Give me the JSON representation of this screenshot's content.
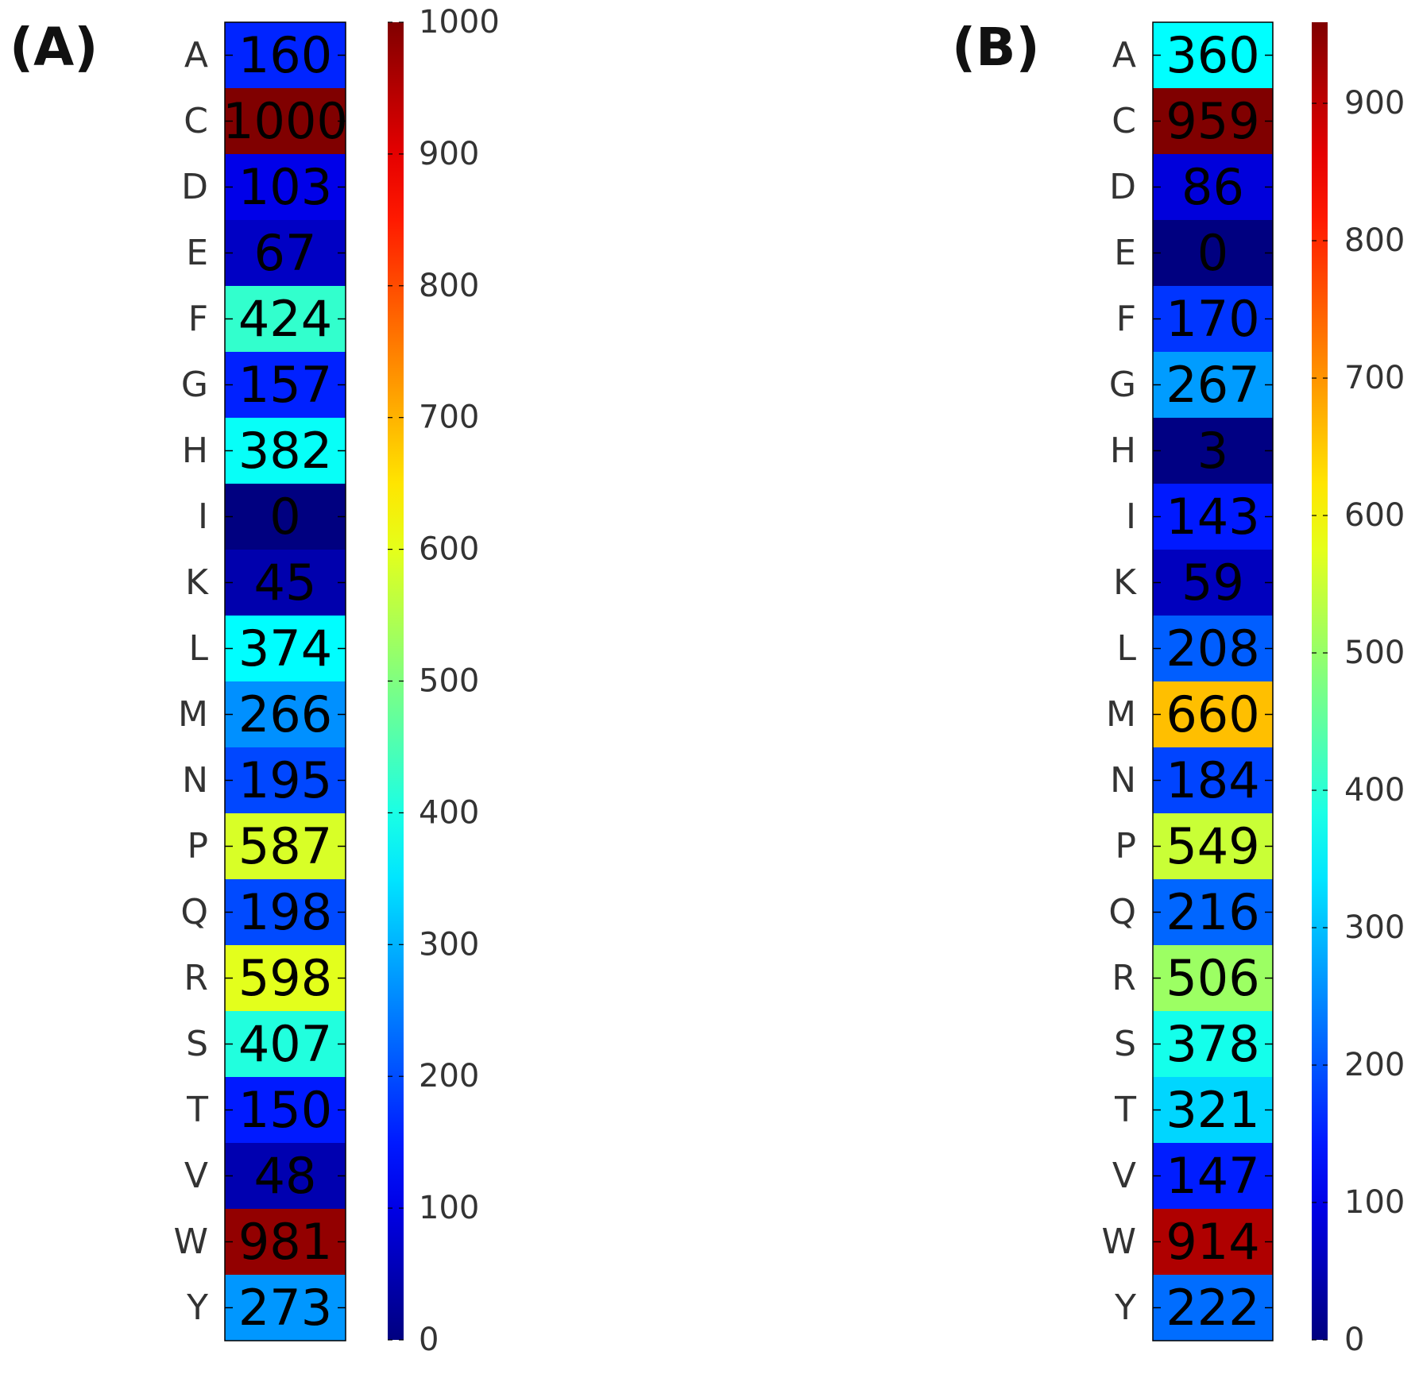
{
  "chart_data": [
    {
      "type": "heatmap",
      "panel_label": "(A)",
      "colormap": "jet",
      "categories": [
        "A",
        "C",
        "D",
        "E",
        "F",
        "G",
        "H",
        "I",
        "K",
        "L",
        "M",
        "N",
        "P",
        "Q",
        "R",
        "S",
        "T",
        "V",
        "W",
        "Y"
      ],
      "values": [
        160,
        1000,
        103,
        67,
        424,
        157,
        382,
        0,
        45,
        374,
        266,
        195,
        587,
        198,
        598,
        407,
        150,
        48,
        981,
        273
      ],
      "colorbar": {
        "range": [
          0,
          1000
        ],
        "ticks": [
          0,
          100,
          200,
          300,
          400,
          500,
          600,
          700,
          800,
          900,
          1000
        ]
      }
    },
    {
      "type": "heatmap",
      "panel_label": "(B)",
      "colormap": "jet",
      "categories": [
        "A",
        "C",
        "D",
        "E",
        "F",
        "G",
        "H",
        "I",
        "K",
        "L",
        "M",
        "N",
        "P",
        "Q",
        "R",
        "S",
        "T",
        "V",
        "W",
        "Y"
      ],
      "values": [
        360,
        959,
        86,
        0,
        170,
        267,
        3,
        143,
        59,
        208,
        660,
        184,
        549,
        216,
        506,
        378,
        321,
        147,
        914,
        222
      ],
      "colorbar": {
        "range": [
          0,
          959
        ],
        "ticks": [
          0,
          100,
          200,
          300,
          400,
          500,
          600,
          700,
          800,
          900
        ]
      }
    }
  ]
}
